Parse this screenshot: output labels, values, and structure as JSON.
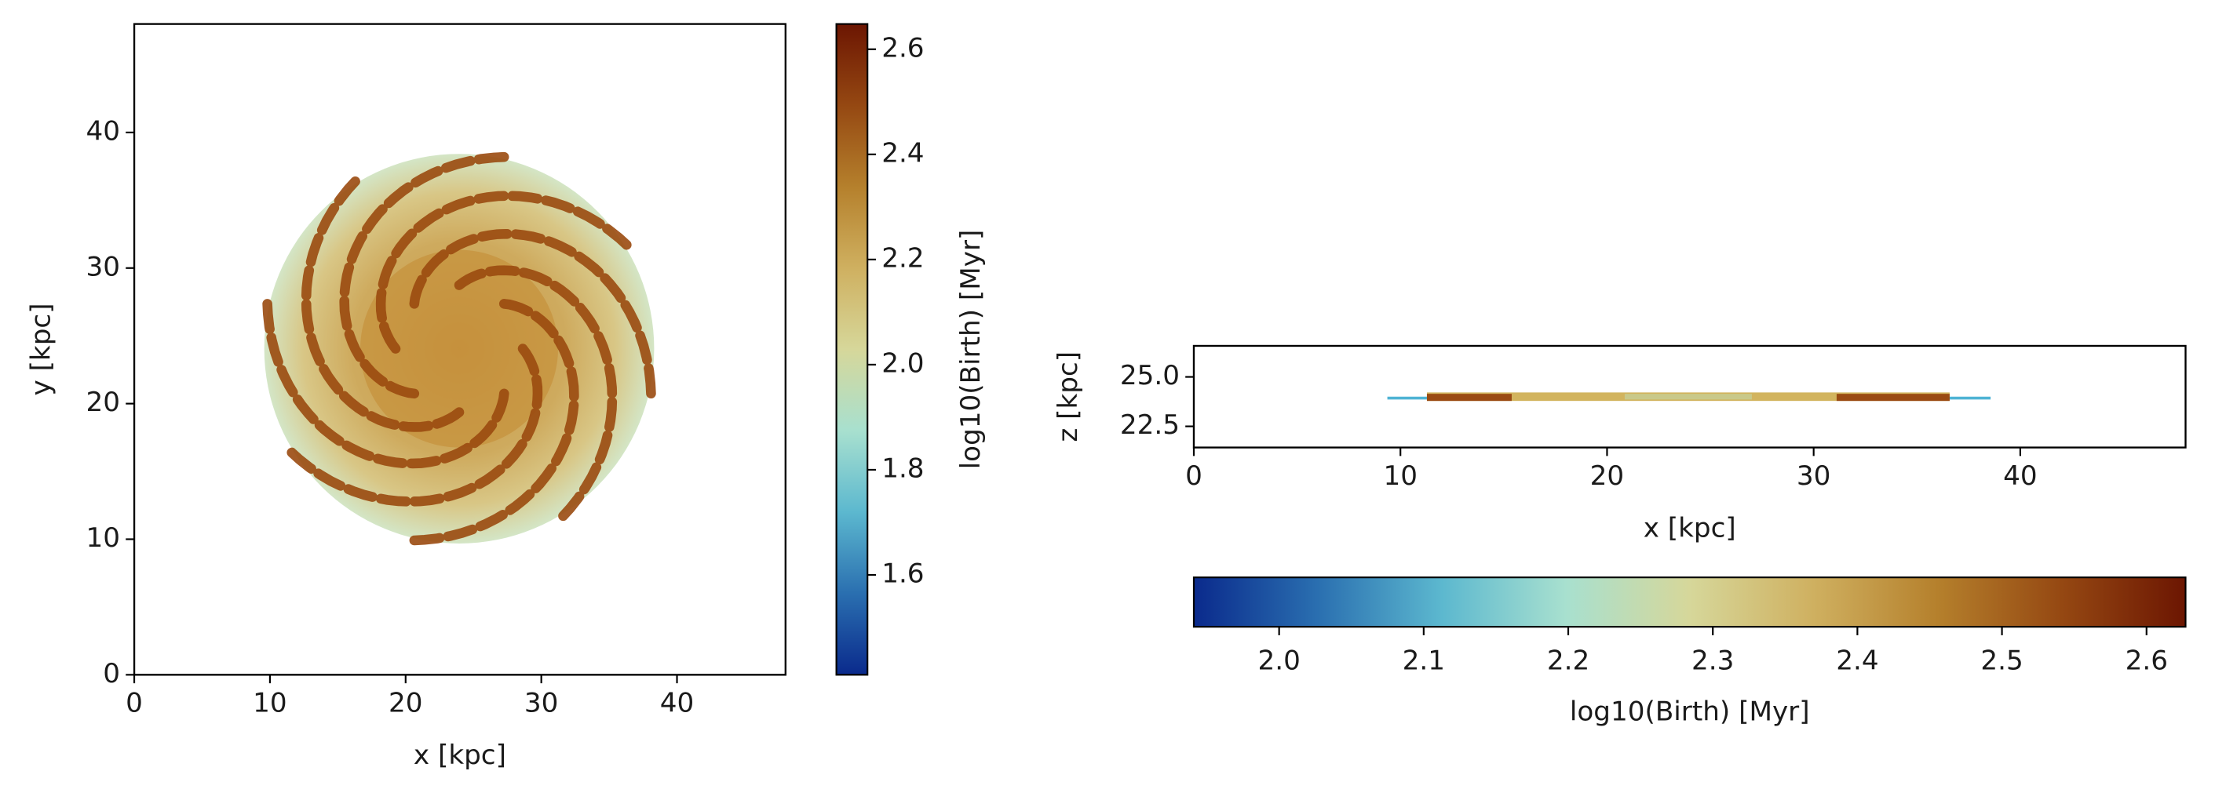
{
  "colormap": [
    "#0a2a8c",
    "#2a6fb0",
    "#5cb8cf",
    "#a8e0cf",
    "#d6d79a",
    "#cfb060",
    "#b5802c",
    "#954812",
    "#6c1602"
  ],
  "chart_data": [
    {
      "type": "heatmap",
      "xlabel": "x [kpc]",
      "ylabel": "y [kpc]",
      "xlim": [
        0,
        48
      ],
      "ylim": [
        0,
        48
      ],
      "xticks": [
        0,
        10,
        20,
        30,
        40
      ],
      "yticks": [
        0,
        10,
        20,
        30,
        40
      ],
      "colorbar": {
        "orientation": "vertical",
        "label": "log10(Birth) [Myr]",
        "lim": [
          1.41,
          2.648
        ],
        "ticks": [
          1.6,
          1.8,
          {
            "value": 2,
            "label": "2.0"
          },
          2.2,
          2.4,
          2.6
        ]
      }
    },
    {
      "type": "heatmap",
      "xlabel": "x [kpc]",
      "ylabel": "z [kpc]",
      "xlim": [
        0,
        48
      ],
      "ylim": [
        21.43,
        26.57
      ],
      "xticks": [
        0,
        10,
        20,
        30,
        40
      ],
      "yticks": [
        22.5,
        {
          "value": 25,
          "label": "25.0"
        }
      ],
      "colorbar": {
        "orientation": "horizontal",
        "label": "log10(Birth) [Myr]",
        "lim": [
          1.941,
          2.627
        ],
        "ticks": [
          {
            "value": 2,
            "label": "2.0"
          },
          2.1,
          2.2,
          2.3,
          2.4,
          2.5,
          2.6
        ]
      }
    }
  ]
}
